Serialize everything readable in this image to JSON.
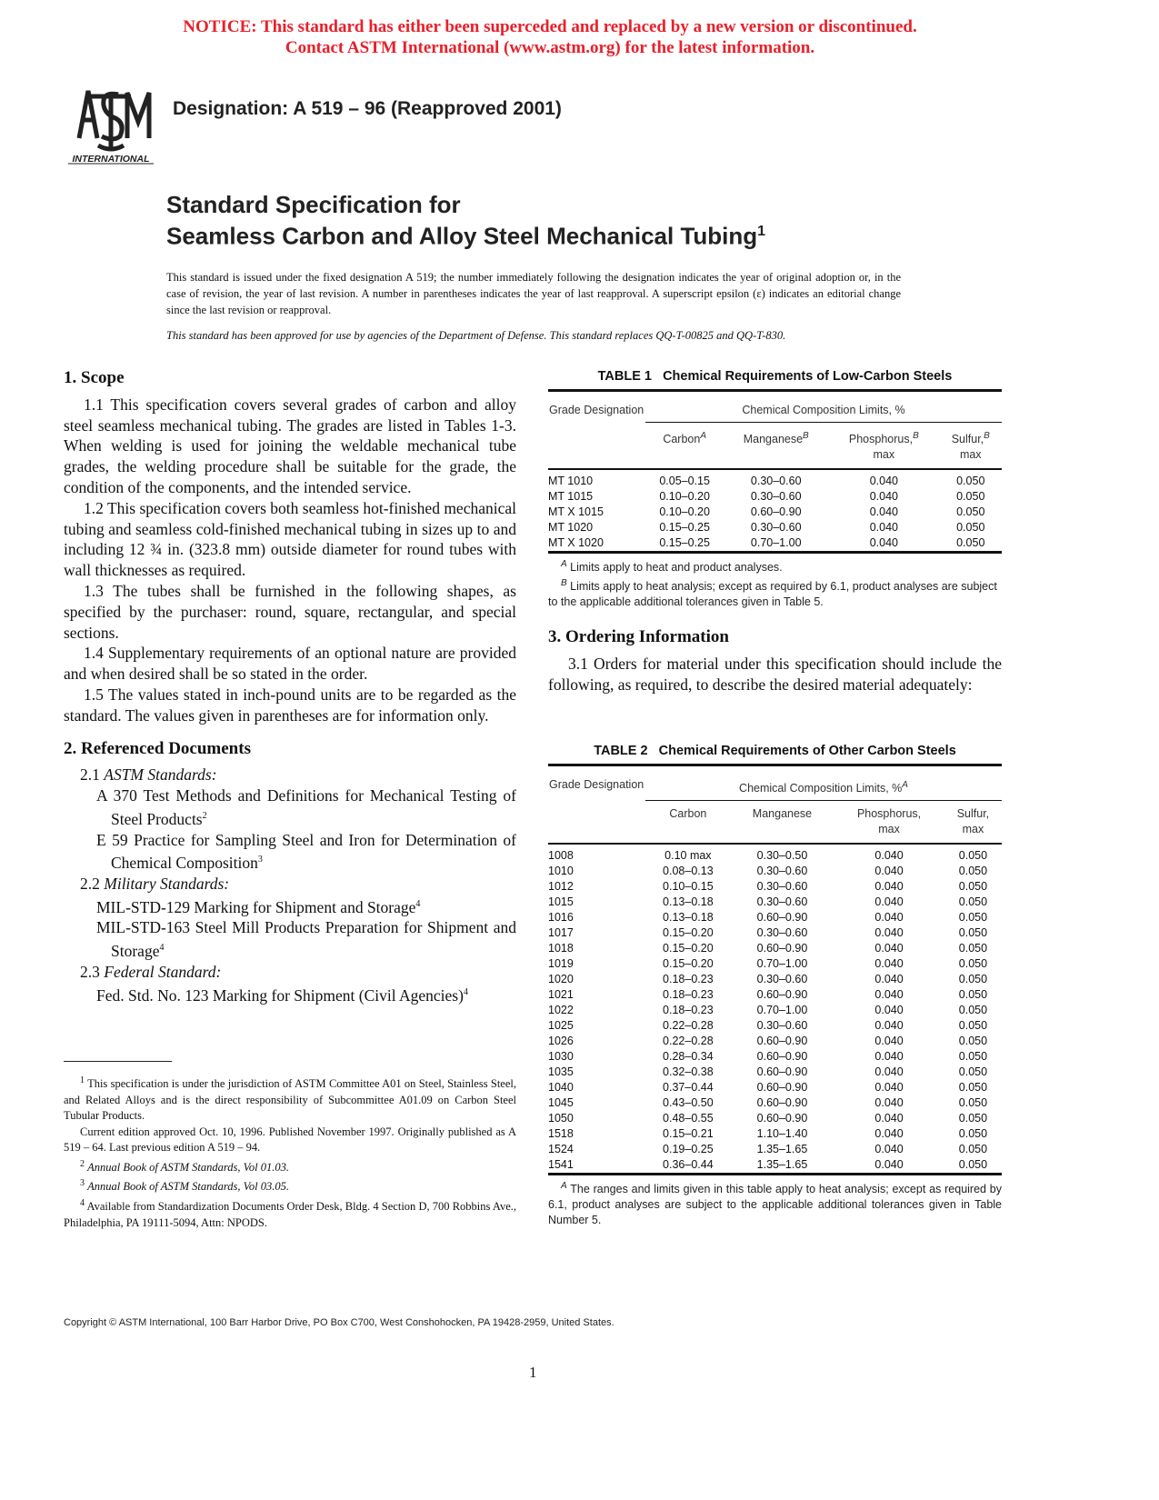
{
  "notice": [
    "NOTICE: This standard has either been superceded and replaced by a new version or discontinued.",
    "Contact ASTM International (www.astm.org) for the latest information."
  ],
  "logo_text": "ASTM INTERNATIONAL",
  "designation": "Designation: A 519 – 96 (Reapproved 2001)",
  "title": {
    "line1": "Standard Specification for",
    "line2": "Seamless Carbon and Alloy Steel Mechanical Tubing",
    "footnote": "1"
  },
  "intro": "This standard is issued under the fixed designation A 519; the number immediately following the designation indicates the year of original adoption or, in the case of revision, the year of last revision. A number in parentheses indicates the year of last reapproval. A superscript epsilon (ε) indicates an editorial change since the last revision or reapproval.",
  "dod_note": "This standard has been approved for use by agencies of the Department of Defense. This standard replaces QQ-T-00825 and QQ-T-830.",
  "scope": {
    "heading": "1. Scope",
    "paras": [
      "1.1 This specification covers several grades of carbon and alloy steel seamless mechanical tubing. The grades are listed in Tables 1-3. When welding is used for joining the weldable mechanical tube grades, the welding procedure shall be suitable for the grade, the condition of the components, and the intended service.",
      "1.2 This specification covers both seamless hot-finished mechanical tubing and seamless cold-finished mechanical tubing in sizes up to and including 12 ¾ in. (323.8 mm) outside diameter for round tubes with wall thicknesses as required.",
      "1.3 The tubes shall be furnished in the following shapes, as specified by the purchaser: round, square, rectangular, and special sections.",
      "1.4 Supplementary requirements of an optional nature are provided and when desired shall be so stated in the order.",
      "1.5 The values stated in inch-pound units are to be regarded as the standard. The values given in parentheses are for information only."
    ]
  },
  "refdocs": {
    "heading": "2. Referenced Documents",
    "s21": "2.1 ",
    "s21i": "ASTM Standards:",
    "a370": "A 370 Test Methods and Definitions for Mechanical Testing of Steel Products",
    "a370_fn": "2",
    "e59": "E 59 Practice for Sampling Steel and Iron for Determination of Chemical Composition",
    "e59_fn": "3",
    "s22": "2.2 ",
    "s22i": "Military Standards:",
    "mil129": "MIL-STD-129 Marking for Shipment and Storage",
    "mil129_fn": "4",
    "mil163": "MIL-STD-163 Steel Mill Products Preparation for Shipment and Storage",
    "mil163_fn": "4",
    "s23": "2.3 ",
    "s23i": "Federal Standard:",
    "fed": "Fed. Std. No. 123 Marking for Shipment (Civil Agencies)",
    "fed_fn": "4"
  },
  "footnotes": {
    "f1": "This specification is under the jurisdiction of ASTM Committee A01 on Steel, Stainless Steel, and Related Alloys and is the direct responsibility of Subcommittee A01.09 on Carbon Steel Tubular Products.",
    "f1b": "Current edition approved Oct. 10, 1996. Published November 1997. Originally published as A 519 – 64. Last previous edition A 519 – 94.",
    "f2": "Annual Book of ASTM Standards, Vol 01.03.",
    "f3": "Annual Book of ASTM Standards, Vol 03.05.",
    "f4": "Available from Standardization Documents Order Desk, Bldg. 4 Section D, 700 Robbins Ave., Philadelphia, PA 19111-5094, Attn: NPODS."
  },
  "table1": {
    "title": "TABLE 1   Chemical Requirements of Low-Carbon Steels",
    "grade_h": "Grade Designation",
    "group_h": "Chemical Composition Limits, %",
    "cols": [
      "Carbon",
      "Manganese",
      "Phosphorus,",
      "Sulfur,"
    ],
    "col_fn": [
      "A",
      "B",
      "B",
      "B"
    ],
    "max": "max",
    "rows": [
      [
        "MT 1010",
        "0.05–0.15",
        "0.30–0.60",
        "0.040",
        "0.050"
      ],
      [
        "MT 1015",
        "0.10–0.20",
        "0.30–0.60",
        "0.040",
        "0.050"
      ],
      [
        "MT X 1015",
        "0.10–0.20",
        "0.60–0.90",
        "0.040",
        "0.050"
      ],
      [
        "MT 1020",
        "0.15–0.25",
        "0.30–0.60",
        "0.040",
        "0.050"
      ],
      [
        "MT X 1020",
        "0.15–0.25",
        "0.70–1.00",
        "0.040",
        "0.050"
      ]
    ],
    "noteA_mark": "A",
    "noteA": "Limits apply to heat and product analyses.",
    "noteB_mark": "B",
    "noteB": "Limits apply to heat analysis; except as required by 6.1, product analyses are subject to the applicable additional tolerances given in Table 5."
  },
  "ordering": {
    "heading": "3. Ordering Information",
    "para": "3.1 Orders for material under this specification should include the following, as required, to describe the desired material adequately:"
  },
  "table2": {
    "title": "TABLE 2   Chemical Requirements of Other Carbon Steels",
    "grade_h": "Grade Designation",
    "group_h": "Chemical Composition Limits, %",
    "group_fn": "A",
    "cols": [
      "Carbon",
      "Manganese",
      "Phosphorus,",
      "Sulfur,"
    ],
    "max": "max",
    "rows": [
      [
        "1008",
        "0.10 max",
        "0.30–0.50",
        "0.040",
        "0.050"
      ],
      [
        "1010",
        "0.08–0.13",
        "0.30–0.60",
        "0.040",
        "0.050"
      ],
      [
        "1012",
        "0.10–0.15",
        "0.30–0.60",
        "0.040",
        "0.050"
      ],
      [
        "1015",
        "0.13–0.18",
        "0.30–0.60",
        "0.040",
        "0.050"
      ],
      [
        "1016",
        "0.13–0.18",
        "0.60–0.90",
        "0.040",
        "0.050"
      ],
      [
        "1017",
        "0.15–0.20",
        "0.30–0.60",
        "0.040",
        "0.050"
      ],
      [
        "1018",
        "0.15–0.20",
        "0.60–0.90",
        "0.040",
        "0.050"
      ],
      [
        "1019",
        "0.15–0.20",
        "0.70–1.00",
        "0.040",
        "0.050"
      ],
      [
        "1020",
        "0.18–0.23",
        "0.30–0.60",
        "0.040",
        "0.050"
      ],
      [
        "1021",
        "0.18–0.23",
        "0.60–0.90",
        "0.040",
        "0.050"
      ],
      [
        "1022",
        "0.18–0.23",
        "0.70–1.00",
        "0.040",
        "0.050"
      ],
      [
        "1025",
        "0.22–0.28",
        "0.30–0.60",
        "0.040",
        "0.050"
      ],
      [
        "1026",
        "0.22–0.28",
        "0.60–0.90",
        "0.040",
        "0.050"
      ],
      [
        "1030",
        "0.28–0.34",
        "0.60–0.90",
        "0.040",
        "0.050"
      ],
      [
        "1035",
        "0.32–0.38",
        "0.60–0.90",
        "0.040",
        "0.050"
      ],
      [
        "1040",
        "0.37–0.44",
        "0.60–0.90",
        "0.040",
        "0.050"
      ],
      [
        "1045",
        "0.43–0.50",
        "0.60–0.90",
        "0.040",
        "0.050"
      ],
      [
        "1050",
        "0.48–0.55",
        "0.60–0.90",
        "0.040",
        "0.050"
      ],
      [
        "1518",
        "0.15–0.21",
        "1.10–1.40",
        "0.040",
        "0.050"
      ],
      [
        "1524",
        "0.19–0.25",
        "1.35–1.65",
        "0.040",
        "0.050"
      ],
      [
        "1541",
        "0.36–0.44",
        "1.35–1.65",
        "0.040",
        "0.050"
      ]
    ],
    "noteA_mark": "A",
    "noteA": "The ranges and limits given in this table apply to heat analysis; except as required by 6.1, product analyses are subject to the applicable additional tolerances given in Table Number 5."
  },
  "copyright": "Copyright © ASTM International, 100 Barr Harbor Drive, PO Box C700, West Conshohocken, PA 19428-2959, United States.",
  "page_number": "1",
  "colors": {
    "notice": "#e8202a",
    "text": "#111111"
  }
}
